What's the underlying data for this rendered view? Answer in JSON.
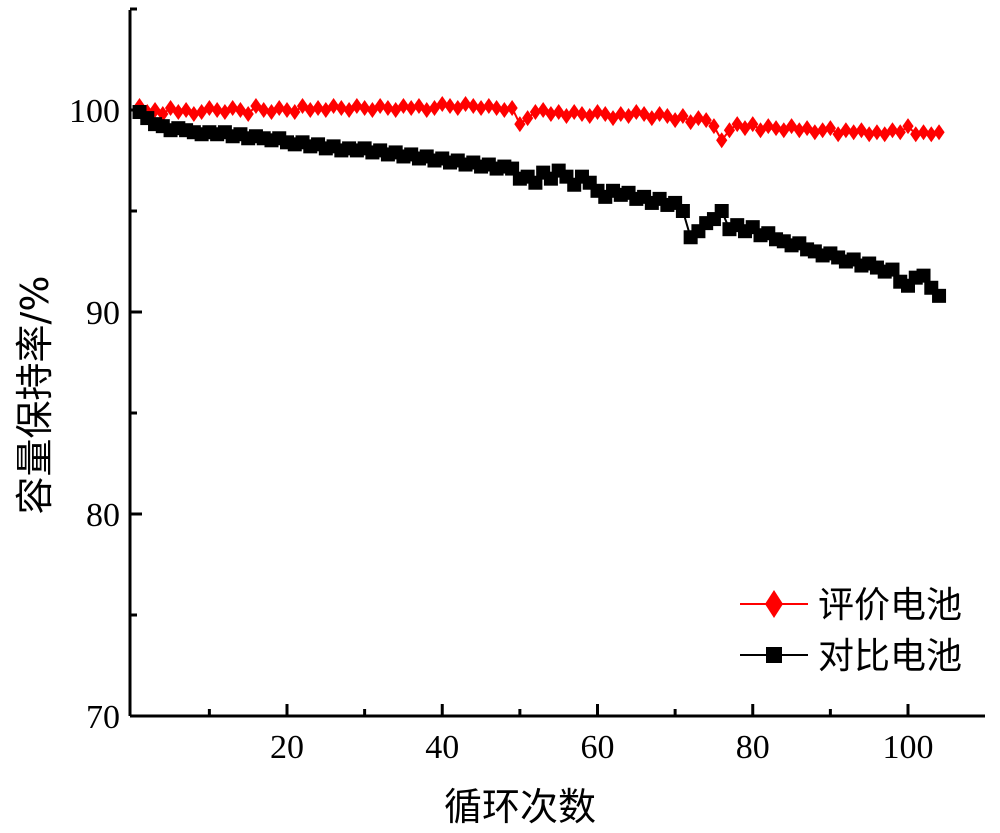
{
  "chart_data": {
    "type": "line",
    "title": "",
    "xlabel": "循环次数",
    "ylabel": "容量保持率/%",
    "xlim": [
      0,
      110
    ],
    "ylim": [
      70,
      105
    ],
    "x_ticks": [
      20,
      40,
      60,
      80,
      100
    ],
    "x_tick_labels": [
      "20",
      "40",
      "60",
      "80",
      "100"
    ],
    "y_ticks": [
      70,
      80,
      90,
      100
    ],
    "y_tick_labels": [
      "70",
      "80",
      "90",
      "100"
    ],
    "grid": false,
    "legend_position": "bottom-right",
    "series": [
      {
        "name": "评价电池",
        "color": "#ff0000",
        "marker": "diamond",
        "x": [
          1,
          2,
          3,
          4,
          5,
          6,
          7,
          8,
          9,
          10,
          11,
          12,
          13,
          14,
          15,
          16,
          17,
          18,
          19,
          20,
          21,
          22,
          23,
          24,
          25,
          26,
          27,
          28,
          29,
          30,
          31,
          32,
          33,
          34,
          35,
          36,
          37,
          38,
          39,
          40,
          41,
          42,
          43,
          44,
          45,
          46,
          47,
          48,
          49,
          50,
          51,
          52,
          53,
          54,
          55,
          56,
          57,
          58,
          59,
          60,
          61,
          62,
          63,
          64,
          65,
          66,
          67,
          68,
          69,
          70,
          71,
          72,
          73,
          74,
          75,
          76,
          77,
          78,
          79,
          80,
          81,
          82,
          83,
          84,
          85,
          86,
          87,
          88,
          89,
          90,
          91,
          92,
          93,
          94,
          95,
          96,
          97,
          98,
          99,
          100,
          101,
          102,
          103,
          104
        ],
        "y": [
          100.2,
          99.9,
          100.0,
          99.8,
          100.1,
          99.9,
          100.0,
          99.8,
          99.9,
          100.1,
          100.0,
          99.9,
          100.1,
          100.0,
          99.8,
          100.2,
          100.0,
          99.9,
          100.1,
          100.0,
          99.9,
          100.2,
          100.0,
          100.1,
          100.0,
          100.2,
          100.1,
          100.0,
          100.2,
          100.1,
          100.0,
          100.2,
          100.1,
          100.0,
          100.2,
          100.1,
          100.2,
          100.0,
          100.1,
          100.3,
          100.2,
          100.1,
          100.3,
          100.2,
          100.1,
          100.2,
          100.1,
          100.0,
          100.1,
          99.3,
          99.6,
          99.9,
          100.0,
          99.8,
          99.9,
          99.7,
          99.9,
          99.8,
          99.7,
          99.9,
          99.8,
          99.6,
          99.8,
          99.7,
          99.9,
          99.8,
          99.6,
          99.8,
          99.7,
          99.5,
          99.7,
          99.4,
          99.6,
          99.5,
          99.2,
          98.5,
          99.0,
          99.3,
          99.1,
          99.3,
          99.0,
          99.2,
          99.1,
          99.0,
          99.2,
          99.0,
          99.1,
          98.9,
          99.0,
          99.1,
          98.8,
          99.0,
          98.9,
          99.0,
          98.8,
          98.9,
          98.8,
          99.0,
          98.9,
          99.2,
          98.8,
          98.9,
          98.8,
          98.9
        ]
      },
      {
        "name": "对比电池",
        "color": "#000000",
        "marker": "square",
        "x": [
          1,
          2,
          3,
          4,
          5,
          6,
          7,
          8,
          9,
          10,
          11,
          12,
          13,
          14,
          15,
          16,
          17,
          18,
          19,
          20,
          21,
          22,
          23,
          24,
          25,
          26,
          27,
          28,
          29,
          30,
          31,
          32,
          33,
          34,
          35,
          36,
          37,
          38,
          39,
          40,
          41,
          42,
          43,
          44,
          45,
          46,
          47,
          48,
          49,
          50,
          51,
          52,
          53,
          54,
          55,
          56,
          57,
          58,
          59,
          60,
          61,
          62,
          63,
          64,
          65,
          66,
          67,
          68,
          69,
          70,
          71,
          72,
          73,
          74,
          75,
          76,
          77,
          78,
          79,
          80,
          81,
          82,
          83,
          84,
          85,
          86,
          87,
          88,
          89,
          90,
          91,
          92,
          93,
          94,
          95,
          96,
          97,
          98,
          99,
          100,
          101,
          102,
          103,
          104
        ],
        "y": [
          99.9,
          99.6,
          99.3,
          99.2,
          99.0,
          99.1,
          99.0,
          98.9,
          98.8,
          98.9,
          98.8,
          98.9,
          98.7,
          98.8,
          98.6,
          98.7,
          98.6,
          98.5,
          98.6,
          98.4,
          98.3,
          98.4,
          98.2,
          98.3,
          98.1,
          98.2,
          98.0,
          98.1,
          98.0,
          98.1,
          97.9,
          98.0,
          97.8,
          97.9,
          97.7,
          97.8,
          97.6,
          97.7,
          97.5,
          97.6,
          97.4,
          97.5,
          97.3,
          97.4,
          97.2,
          97.3,
          97.1,
          97.2,
          97.1,
          96.6,
          96.7,
          96.4,
          96.9,
          96.6,
          97.0,
          96.7,
          96.3,
          96.7,
          96.4,
          96.0,
          95.7,
          96.0,
          95.8,
          95.9,
          95.6,
          95.7,
          95.4,
          95.6,
          95.3,
          95.4,
          95.0,
          93.7,
          94.0,
          94.4,
          94.6,
          95.0,
          94.1,
          94.3,
          94.0,
          94.2,
          93.8,
          93.9,
          93.6,
          93.5,
          93.3,
          93.4,
          93.1,
          93.0,
          92.8,
          92.9,
          92.7,
          92.5,
          92.6,
          92.3,
          92.4,
          92.2,
          92.0,
          92.1,
          91.5,
          91.3,
          91.7,
          91.8,
          91.2,
          90.8
        ]
      }
    ]
  }
}
